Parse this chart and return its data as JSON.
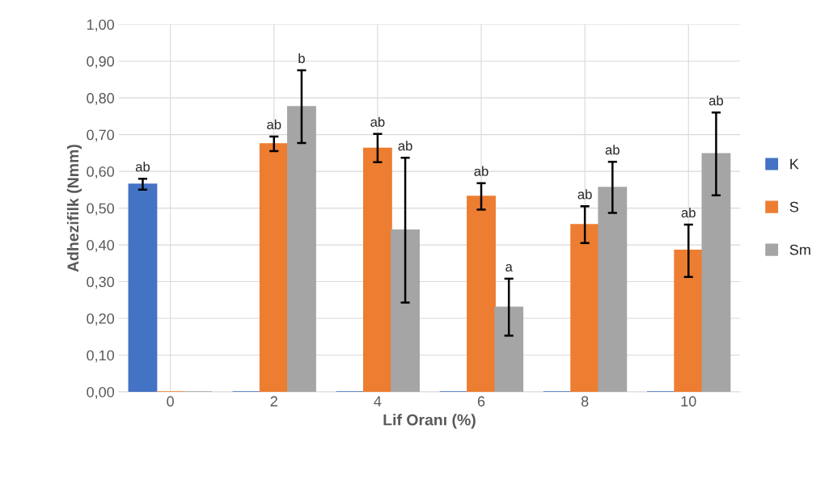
{
  "chart_data": {
    "type": "bar",
    "xlabel": "Lif Oranı (%)",
    "ylabel": "Adhezifilk (Nmm)",
    "categories": [
      "0",
      "2",
      "4",
      "6",
      "8",
      "10"
    ],
    "series": [
      {
        "name": "K",
        "color": "#4472c4",
        "values": [
          0.565,
          0,
          0,
          0,
          0,
          0
        ],
        "errors": [
          0.015,
          null,
          null,
          null,
          null,
          null
        ]
      },
      {
        "name": "S",
        "color": "#ed7d31",
        "values": [
          0,
          0.675,
          0.663,
          0.532,
          0.455,
          0.385
        ],
        "errors": [
          null,
          0.02,
          [
            0.625,
            0.702
          ],
          0.036,
          0.05,
          [
            0.313,
            0.455
          ]
        ]
      },
      {
        "name": "Sm",
        "color": "#a5a5a5",
        "values": [
          0,
          0.776,
          0.44,
          0.23,
          0.556,
          0.648
        ],
        "errors": [
          null,
          [
            0.677,
            0.875
          ],
          [
            0.243,
            0.637
          ],
          [
            0.153,
            0.308
          ],
          [
            0.487,
            0.626
          ],
          [
            0.535,
            0.76
          ]
        ]
      }
    ],
    "annotations": [
      "ab",
      "ab",
      "b",
      "ab",
      "ab",
      "ab",
      "a",
      "ab",
      "ab",
      "ab",
      "ab"
    ],
    "ylim": [
      0,
      1
    ],
    "yticks": [
      {
        "value": 0,
        "label": "0,00"
      },
      {
        "value": 0.1,
        "label": "0,10"
      },
      {
        "value": 0.2,
        "label": "0,20"
      },
      {
        "value": 0.3,
        "label": "0,30"
      },
      {
        "value": 0.4,
        "label": "0,40"
      },
      {
        "value": 0.5,
        "label": "0,50"
      },
      {
        "value": 0.6,
        "label": "0,60"
      },
      {
        "value": 0.7,
        "label": "0,70"
      },
      {
        "value": 0.8,
        "label": "0,80"
      },
      {
        "value": 0.9,
        "label": "0,90"
      },
      {
        "value": 1,
        "label": "1,00"
      }
    ],
    "grid": true,
    "legend": "right"
  }
}
